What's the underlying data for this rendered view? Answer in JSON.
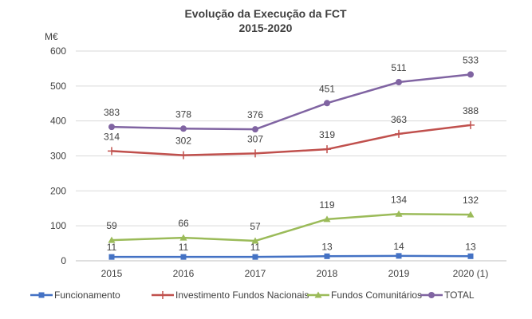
{
  "chart_data": {
    "type": "line",
    "title": "Evolução da Execução da FCT",
    "subtitle": "2015-2020",
    "ylabel": "M€",
    "xlabel": "",
    "categories": [
      "2015",
      "2016",
      "2017",
      "2018",
      "2019",
      "2020 (1)"
    ],
    "ylim": [
      0,
      600
    ],
    "yticks": [
      "0",
      "100",
      "200",
      "300",
      "400",
      "500",
      "600"
    ],
    "grid": true,
    "legend_position": "bottom",
    "series": [
      {
        "name": "Funcionamento",
        "values": [
          11,
          11,
          11,
          13,
          14,
          13
        ],
        "color": "#4472c4",
        "marker": "square"
      },
      {
        "name": "Investimento Fundos Nacionais",
        "values": [
          314,
          302,
          307,
          319,
          363,
          388
        ],
        "color": "#c0504d",
        "marker": "plus"
      },
      {
        "name": "Fundos Comunitários",
        "values": [
          59,
          66,
          57,
          119,
          134,
          132
        ],
        "color": "#9bbb59",
        "marker": "triangle"
      },
      {
        "name": "TOTAL",
        "values": [
          383,
          378,
          376,
          451,
          511,
          533
        ],
        "color": "#8064a2",
        "marker": "circle"
      }
    ]
  }
}
